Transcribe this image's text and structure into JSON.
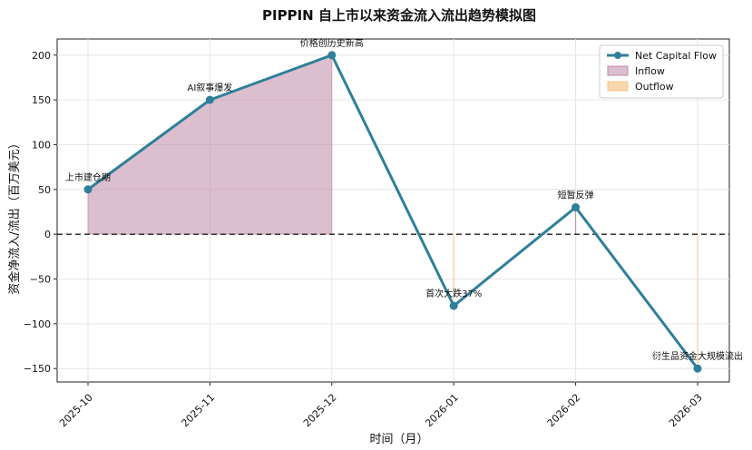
{
  "chart_data": {
    "type": "line",
    "title": "PIPPIN 自上市以来资金流入流出趋势模拟图",
    "xlabel": "时间（月）",
    "ylabel": "资金净流入/流出（百万美元）",
    "categories": [
      "2025-10",
      "2025-11",
      "2025-12",
      "2026-01",
      "2026-02",
      "2026-03"
    ],
    "series": [
      {
        "name": "Net Capital Flow",
        "values": [
          50,
          150,
          200,
          -80,
          30,
          -150
        ],
        "color": "#2e7f9a"
      }
    ],
    "fills": [
      {
        "name": "Inflow",
        "color": "#c08aa8"
      },
      {
        "name": "Outflow",
        "color": "#f5c68a"
      }
    ],
    "yticks": [
      -150,
      -100,
      -50,
      0,
      50,
      100,
      150,
      200
    ],
    "ylim": [
      -165,
      218
    ],
    "grid": true,
    "zero_line": true,
    "legend_position": "top-right",
    "annotations": [
      {
        "index": 0,
        "text": "上市建仓期"
      },
      {
        "index": 1,
        "text": "AI叙事爆发"
      },
      {
        "index": 2,
        "text": "价格创历史新高"
      },
      {
        "index": 3,
        "text": "首次大跌37%"
      },
      {
        "index": 4,
        "text": "短暂反弹"
      },
      {
        "index": 5,
        "text": "衍生品资金大规模流出"
      }
    ]
  }
}
